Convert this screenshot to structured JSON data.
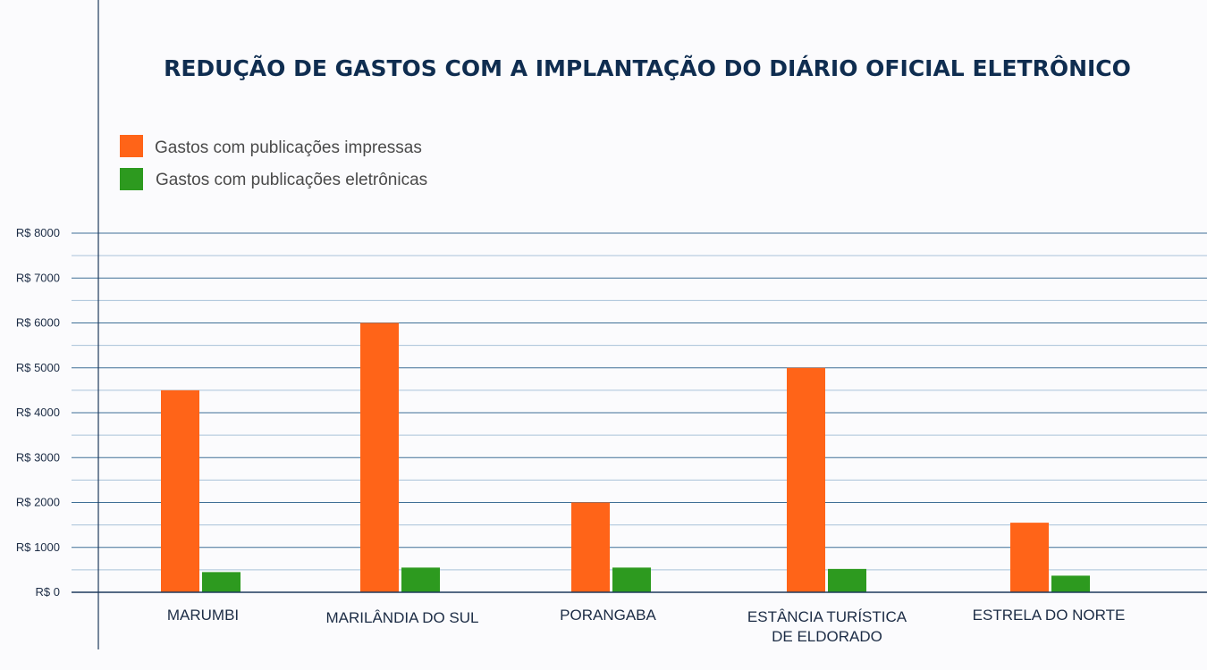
{
  "chart_data": {
    "type": "bar",
    "title": "REDUÇÃO DE GASTOS COM A IMPLANTAÇÃO DO DIÁRIO OFICIAL ELETRÔNICO",
    "xlabel": "",
    "ylabel": "",
    "categories": [
      [
        "MARUMBI"
      ],
      [
        "MARILÂNDIA DO SUL"
      ],
      [
        "PORANGABA"
      ],
      [
        "ESTÂNCIA TURÍSTICA",
        "DE ELDORADO"
      ],
      [
        "ESTRELA DO NORTE"
      ]
    ],
    "series": [
      {
        "name": "Gastos com publicações impressas",
        "color": "#ff6418",
        "values": [
          4500,
          6000,
          2000,
          5000,
          1550
        ]
      },
      {
        "name": "Gastos com publicações eletrônicas",
        "color": "#2d9a1f",
        "values": [
          450,
          550,
          550,
          520,
          370
        ]
      }
    ],
    "ylim": [
      0,
      8000
    ],
    "yticks": [
      0,
      1000,
      2000,
      3000,
      4000,
      5000,
      6000,
      7000,
      8000
    ],
    "ytick_labels": [
      "R$ 0",
      "R$ 1000",
      "R$ 2000",
      "R$ 3000",
      "R$ 4000",
      "R$ 5000",
      "R$ 6000",
      "R$ 7000",
      "R$ 8000"
    ],
    "grid": true,
    "legend_position": "top-left",
    "axis_color": "#1e3a5c",
    "gridline_major_color": "#3f6f96",
    "gridline_minor_color": "#a9c2d8"
  }
}
